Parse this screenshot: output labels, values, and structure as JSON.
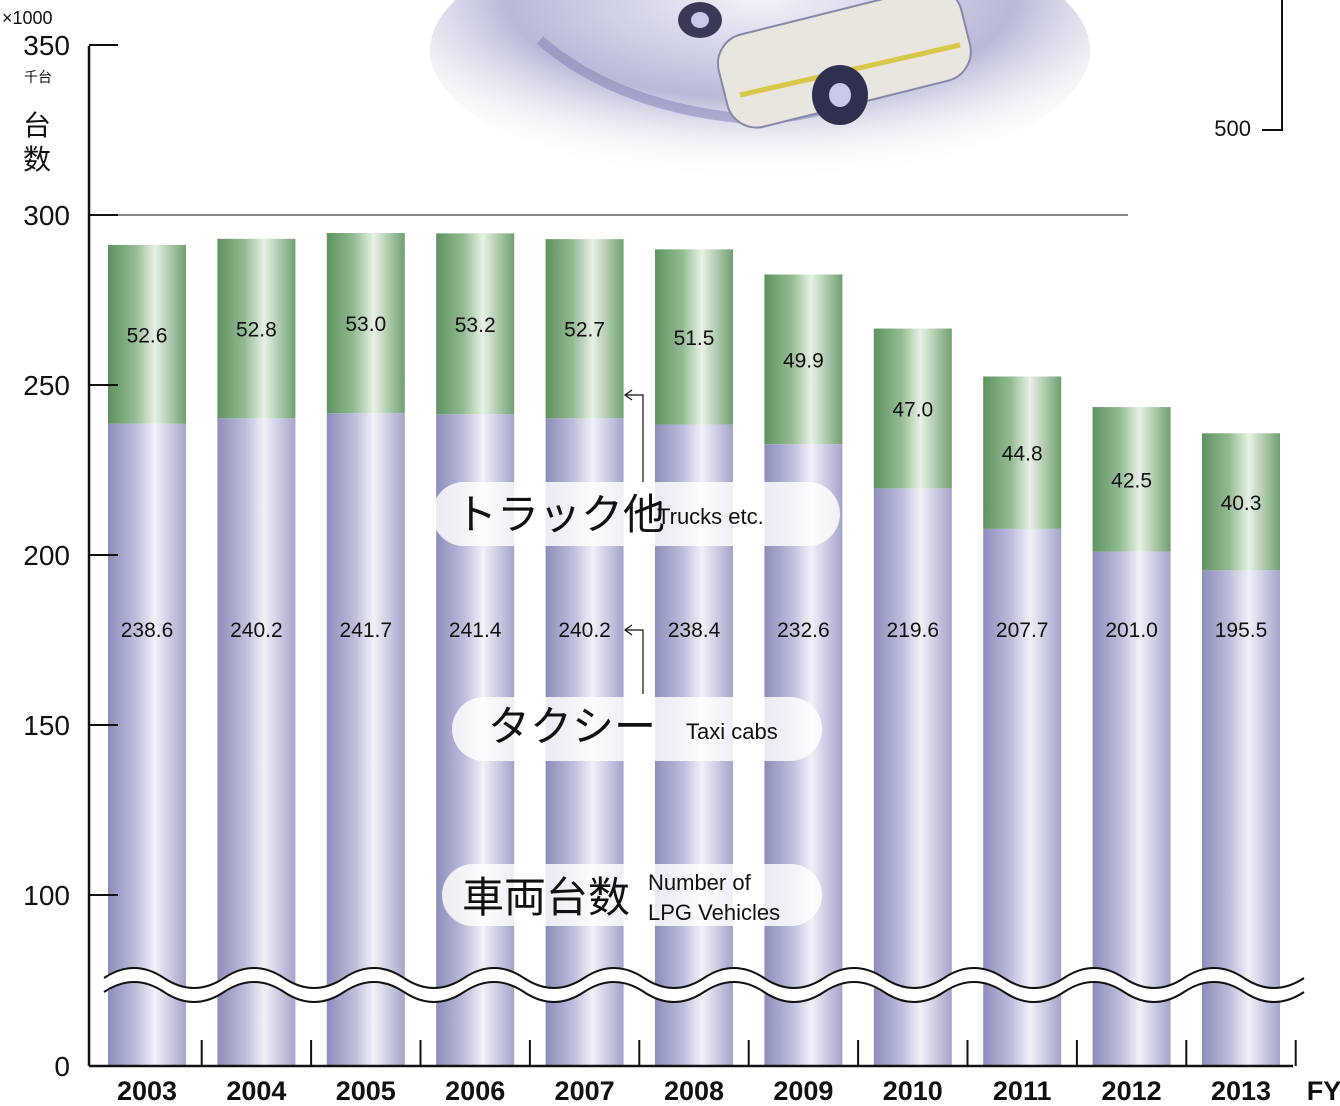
{
  "chart_data": {
    "type": "bar",
    "stacked": true,
    "categories": [
      "2003",
      "2004",
      "2005",
      "2006",
      "2007",
      "2008",
      "2009",
      "2010",
      "2011",
      "2012",
      "2013"
    ],
    "series": [
      {
        "name": "タクシー Taxi cabs",
        "color": "#9c9cc6",
        "values": [
          238.6,
          240.2,
          241.7,
          241.4,
          240.2,
          238.4,
          232.6,
          219.6,
          207.7,
          201.0,
          195.5
        ],
        "labels": [
          "238.6",
          "240.2",
          "241.7",
          "241.4",
          "240.2",
          "238.4",
          "232.6",
          "219.6",
          "207.7",
          "201.0",
          "195.5"
        ]
      },
      {
        "name": "トラック他 Trucks etc.",
        "color": "#6f9f72",
        "values": [
          52.6,
          52.8,
          53.0,
          53.2,
          52.7,
          51.5,
          49.9,
          47.0,
          44.8,
          42.5,
          40.3
        ],
        "labels": [
          "52.6",
          "52.8",
          "53.0",
          "53.2",
          "52.7",
          "51.5",
          "49.9",
          "47.0",
          "44.8",
          "42.5",
          "40.3"
        ]
      }
    ],
    "ylim": [
      0,
      350
    ],
    "yticks": [
      "0",
      "100",
      "150",
      "200",
      "250",
      "300",
      "350"
    ],
    "y_multiplier": "×1000",
    "y_unit": "千台",
    "ylabel": "台数",
    "x_suffix": "FY",
    "axis_break": "wavy break between 0 and 100",
    "gridline_at": 300,
    "inset_axis_label": "500",
    "legend_boxes": [
      {
        "jp": "トラック他",
        "en": "Trucks etc."
      },
      {
        "jp": "タクシー",
        "en": "Taxi cabs"
      },
      {
        "jp": "車両台数",
        "en_line1": "Number of",
        "en_line2": "LPG Vehicles"
      }
    ]
  }
}
